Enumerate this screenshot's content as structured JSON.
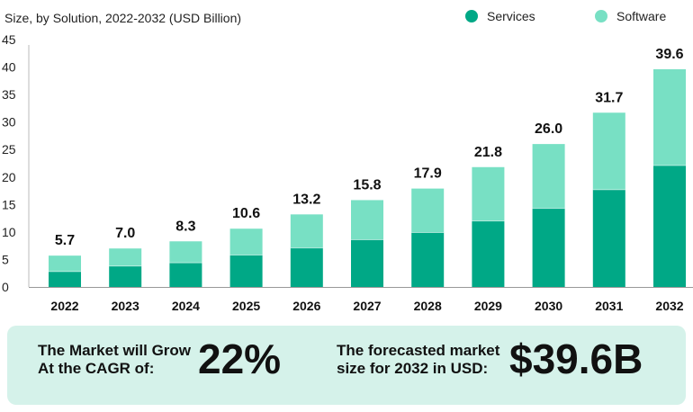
{
  "chart_data": {
    "type": "bar",
    "stacked": true,
    "title": "Size, by Solution, 2022-2032 (USD Billion)",
    "xlabel": "",
    "ylabel": "",
    "ylim": [
      0,
      45
    ],
    "yticks": [
      0,
      5,
      10,
      15,
      20,
      25,
      30,
      35,
      40,
      45
    ],
    "categories": [
      "2022",
      "2023",
      "2024",
      "2025",
      "2026",
      "2027",
      "2028",
      "2029",
      "2030",
      "2031",
      "2032"
    ],
    "series": [
      {
        "name": "Services",
        "color": "#00a886",
        "values": [
          2.8,
          3.8,
          4.4,
          5.8,
          7.1,
          8.6,
          9.9,
          12.0,
          14.3,
          17.7,
          22.1
        ]
      },
      {
        "name": "Software",
        "color": "#78e0c4",
        "values": [
          2.9,
          3.2,
          3.9,
          4.8,
          6.1,
          7.2,
          8.0,
          9.8,
          11.7,
          14.0,
          17.5
        ]
      }
    ],
    "totals": [
      "5.7",
      "7.0",
      "8.3",
      "10.6",
      "13.2",
      "15.8",
      "17.9",
      "21.8",
      "26.0",
      "31.7",
      "39.6"
    ],
    "legend_position": "top-right",
    "grid": false
  },
  "summary": {
    "cagr_label_1": "The Market will Grow",
    "cagr_label_2": "At the CAGR of:",
    "cagr_value": "22%",
    "forecast_label_1": "The forecasted market",
    "forecast_label_2": "size for 2032 in USD:",
    "forecast_value": "$39.6B"
  }
}
